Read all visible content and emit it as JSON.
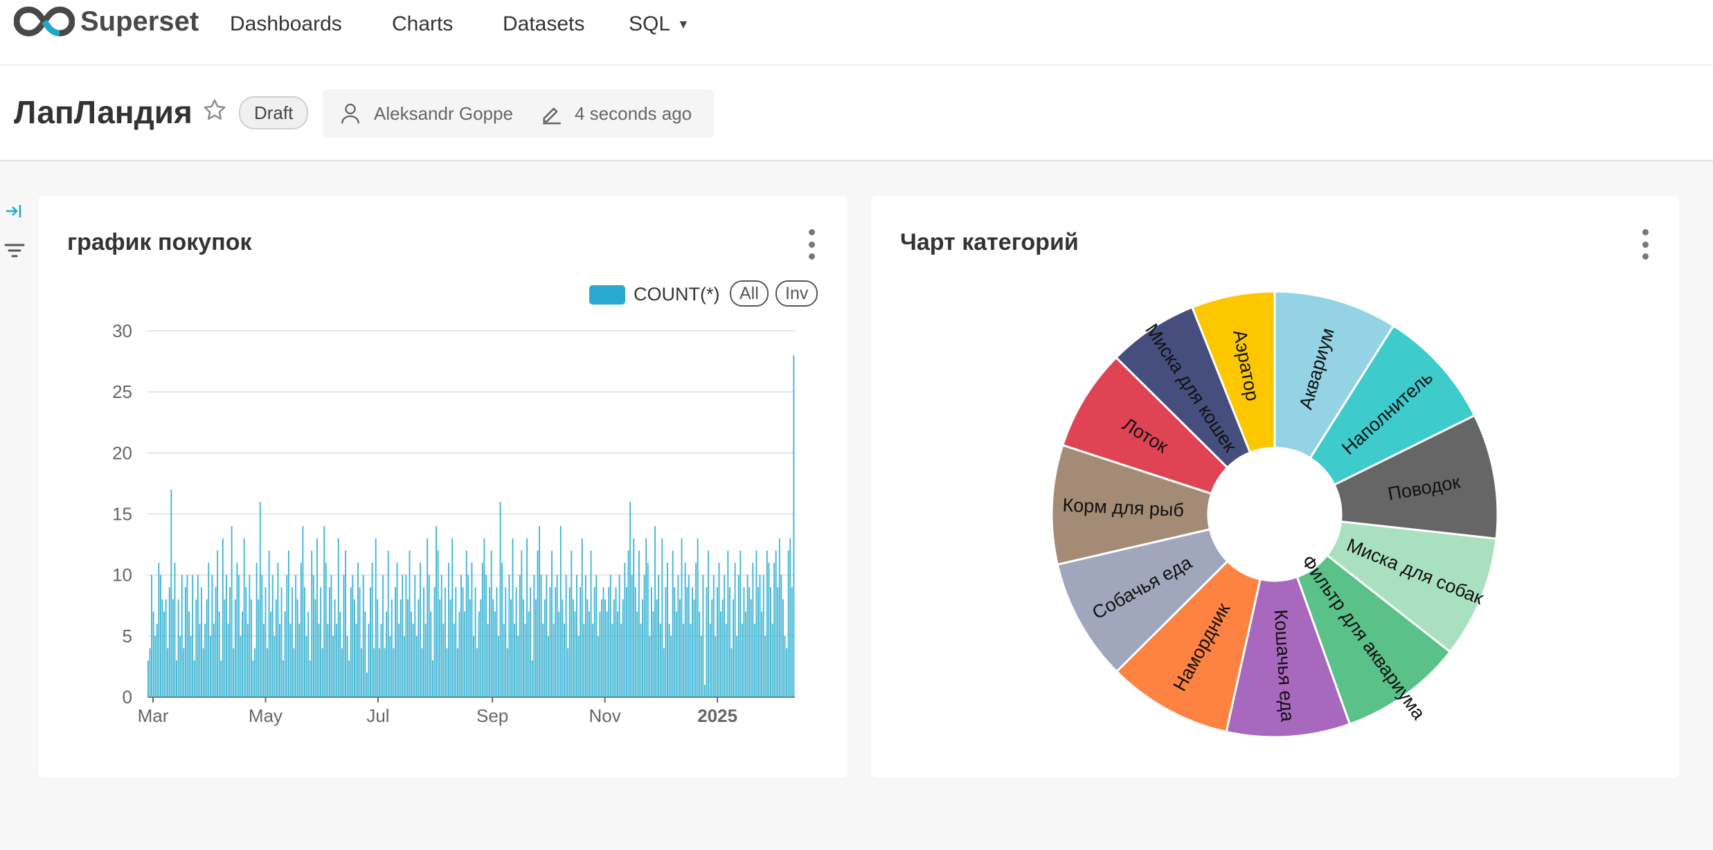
{
  "app": {
    "name": "Superset",
    "nav": {
      "dashboards": "Dashboards",
      "charts": "Charts",
      "datasets": "Datasets",
      "sql": "SQL"
    }
  },
  "dashboard": {
    "title": "ЛапЛандия",
    "status": "Draft",
    "owner": "Aleksandr Goppe",
    "modified": "4 seconds ago"
  },
  "icons": [
    "logo-infinity-icon",
    "star-icon",
    "user-icon",
    "edit-icon",
    "expand-panel-icon",
    "filter-icon",
    "kebab-menu-icon",
    "chevron-down-icon"
  ],
  "colors": {
    "accent": "#20a7c9",
    "bar": "#3fb5d3"
  },
  "chart_data": [
    {
      "type": "bar",
      "title": "график покупок",
      "legend": {
        "series": "COUNT(*)",
        "all": "All",
        "inv": "Inv",
        "position": "top-right"
      },
      "ylim": [
        0,
        30
      ],
      "yticks": [
        "0",
        "5",
        "10",
        "15",
        "20",
        "25",
        "30"
      ],
      "xticks": [
        "Mar",
        "May",
        "Jul",
        "Sep",
        "Nov",
        "2025"
      ],
      "x_start": "2024-02-27",
      "x_end": "2025-02-12",
      "series": [
        {
          "name": "COUNT(*)",
          "values": [
            3,
            4,
            10,
            7,
            5,
            6,
            11,
            10,
            8,
            7,
            8,
            4,
            9,
            17,
            8,
            11,
            3,
            8,
            5,
            10,
            4,
            9,
            10,
            7,
            5,
            10,
            3,
            8,
            10,
            6,
            9,
            4,
            6,
            8,
            11,
            5,
            10,
            6,
            9,
            12,
            7,
            3,
            13,
            8,
            10,
            6,
            9,
            14,
            4,
            8,
            11,
            10,
            5,
            7,
            13,
            9,
            6,
            10,
            8,
            3,
            4,
            11,
            8,
            16,
            10,
            6,
            9,
            4,
            12,
            7,
            10,
            5,
            8,
            11,
            6,
            9,
            3,
            7,
            10,
            12,
            6,
            9,
            4,
            10,
            8,
            6,
            11,
            14,
            9,
            5,
            7,
            3,
            12,
            10,
            8,
            13,
            6,
            9,
            4,
            14,
            11,
            6,
            9,
            10,
            5,
            8,
            6,
            13,
            7,
            4,
            10,
            12,
            5,
            3,
            9,
            10,
            8,
            6,
            11,
            9,
            4,
            10,
            7,
            2,
            6,
            9,
            11,
            4,
            13,
            8,
            4,
            6,
            10,
            4,
            7,
            12,
            5,
            8,
            4,
            9,
            11,
            6,
            8,
            10,
            5,
            10,
            8,
            12,
            7,
            6,
            10,
            5,
            8,
            11,
            4,
            9,
            6,
            13,
            10,
            7,
            3,
            9,
            14,
            12,
            8,
            10,
            6,
            9,
            4,
            11,
            8,
            13,
            6,
            9,
            4,
            7,
            10,
            9,
            7,
            12,
            10,
            8,
            11,
            5,
            9,
            4,
            7,
            8,
            11,
            13,
            10,
            6,
            9,
            12,
            8,
            7,
            9,
            5,
            16,
            11,
            6,
            9,
            4,
            10,
            8,
            13,
            6,
            9,
            5,
            10,
            12,
            8,
            6,
            13,
            7,
            9,
            3,
            10,
            8,
            12,
            14,
            10,
            6,
            8,
            10,
            5,
            9,
            12,
            6,
            9,
            10,
            7,
            14,
            8,
            6,
            10,
            4,
            9,
            12,
            8,
            7,
            10,
            5,
            9,
            13,
            6,
            10,
            8,
            7,
            12,
            6,
            9,
            10,
            5,
            7,
            8,
            9,
            8,
            7,
            9,
            10,
            6,
            8,
            9,
            7,
            10,
            6,
            8,
            11,
            9,
            12,
            16,
            10,
            13,
            9,
            7,
            12,
            6,
            8,
            10,
            13,
            11,
            5,
            9,
            7,
            14,
            8,
            10,
            6,
            13,
            4,
            9,
            11,
            6,
            5,
            12,
            9,
            7,
            10,
            8,
            13,
            6,
            11,
            9,
            10,
            6,
            9,
            8,
            11,
            13,
            7,
            5,
            10,
            1,
            9,
            12,
            6,
            8,
            10,
            5,
            9,
            11,
            7,
            8,
            10,
            6,
            12,
            9,
            4,
            8,
            11,
            5,
            10,
            12,
            6,
            9,
            7,
            10,
            9,
            8,
            11,
            6,
            12,
            9,
            10,
            7,
            10,
            5,
            12,
            11,
            9,
            6,
            11,
            12,
            9,
            13,
            10,
            8,
            5,
            4,
            12,
            13,
            9,
            28
          ]
        }
      ]
    },
    {
      "type": "pie",
      "title": "Чарт категорий",
      "slices": [
        {
          "label": "Аквариум",
          "value": 8.6,
          "color": "#93d3e3"
        },
        {
          "label": "Наполнитель",
          "value": 8.4,
          "color": "#3dcbcb"
        },
        {
          "label": "Поводок",
          "value": 8.7,
          "color": "#666666"
        },
        {
          "label": "Миска для собак",
          "value": 8.5,
          "color": "#a9e1c0"
        },
        {
          "label": "Фильтр для аквариума",
          "value": 8.6,
          "color": "#5ac189"
        },
        {
          "label": "Кошачья еда",
          "value": 8.6,
          "color": "#a768bd"
        },
        {
          "label": "Намордник",
          "value": 8.7,
          "color": "#fe8242"
        },
        {
          "label": "Собачья еда",
          "value": 8.5,
          "color": "#a0a6bc"
        },
        {
          "label": "Корм для рыб",
          "value": 8.3,
          "color": "#a38b76"
        },
        {
          "label": "Лоток",
          "value": 7.1,
          "color": "#e04354"
        },
        {
          "label": "Миска для кошек",
          "value": 6.3,
          "color": "#454e7d"
        },
        {
          "label": "Аэратор",
          "value": 5.8,
          "color": "#fdc700"
        }
      ]
    }
  ]
}
